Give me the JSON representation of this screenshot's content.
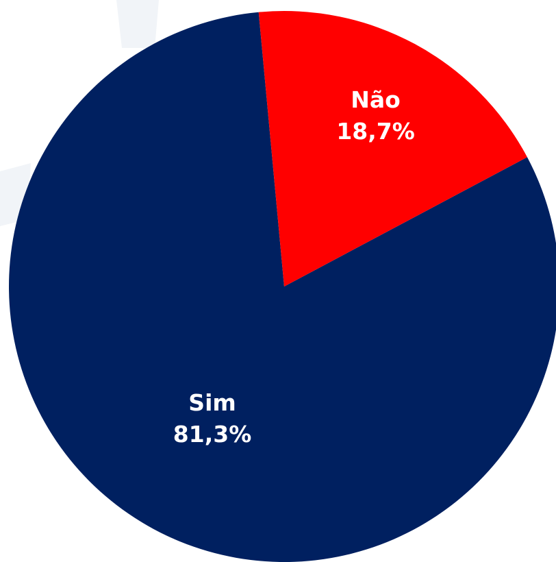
{
  "chart_data": {
    "type": "pie",
    "slices": [
      {
        "label": "Sim",
        "value": 81.3,
        "value_label": "81,3%",
        "color": "#002060"
      },
      {
        "label": "Não",
        "value": 18.7,
        "value_label": "18,7%",
        "color": "#ff0000"
      }
    ],
    "background_color": "#ffffff",
    "label_color": "#ffffff",
    "legend": "none"
  }
}
